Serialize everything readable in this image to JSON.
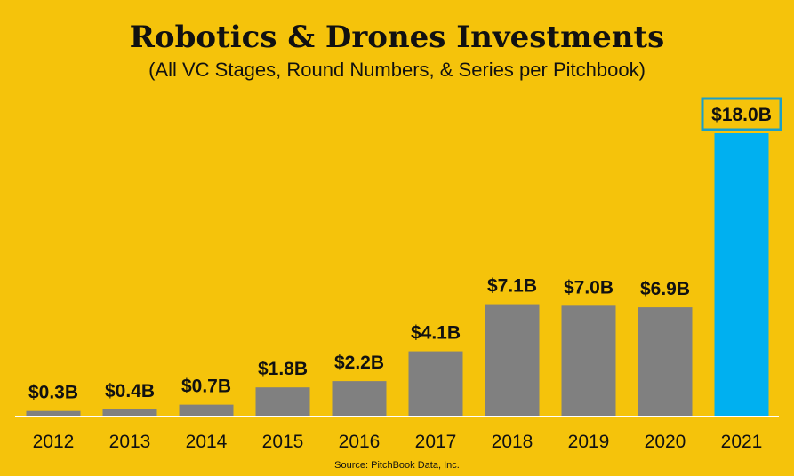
{
  "chart_data": {
    "type": "bar",
    "title": "Robotics & Drones Investments",
    "subtitle": "(All VC Stages, Round Numbers, & Series per Pitchbook)",
    "categories": [
      "2012",
      "2013",
      "2014",
      "2015",
      "2016",
      "2017",
      "2018",
      "2019",
      "2020",
      "2021"
    ],
    "values": [
      0.3,
      0.4,
      0.7,
      1.8,
      2.2,
      4.1,
      7.1,
      7.0,
      6.9,
      18.0
    ],
    "data_labels": [
      "$0.3B",
      "$0.4B",
      "$0.7B",
      "$1.8B",
      "$2.2B",
      "$4.1B",
      "$7.1B",
      "$7.0B",
      "$6.9B",
      "$18.0B"
    ],
    "unit": "$B",
    "ylim": [
      0,
      18
    ],
    "grid": false,
    "highlight_index": 9,
    "colors": {
      "bar": "#808080",
      "highlight": "#00B0F0",
      "highlight_border": "#1A9FC9",
      "background": "#F5C30B",
      "axis": "#FFFFFF"
    },
    "source": "Source: PitchBook Data, Inc."
  }
}
